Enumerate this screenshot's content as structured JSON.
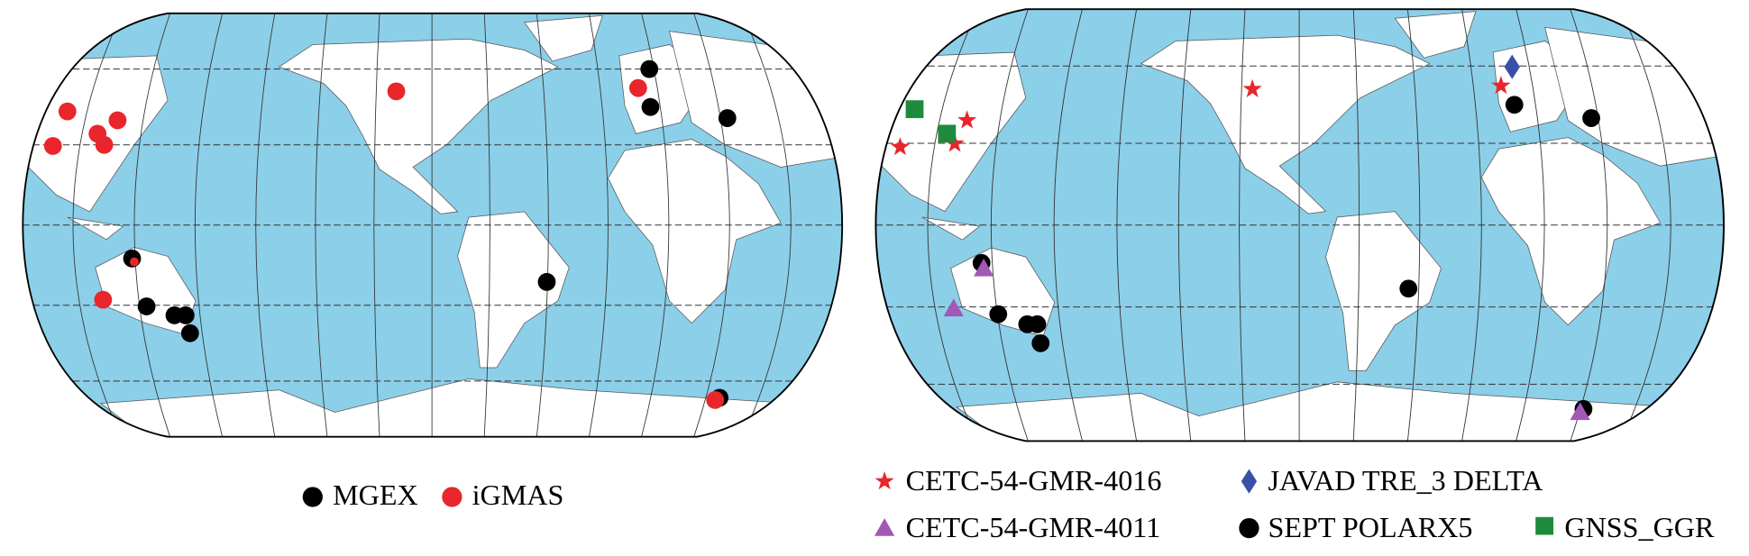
{
  "left_map": {
    "legend": [
      {
        "label": "MGEX"
      },
      {
        "label": "iGMAS"
      }
    ]
  },
  "right_map": {
    "legend": [
      {
        "label": "CETC-54-GMR-4016"
      },
      {
        "label": "JAVAD TRE_3 DELTA"
      },
      {
        "label": "CETC-54-GMR-4011"
      },
      {
        "label": "SEPT POLARX5"
      },
      {
        "label": "GNSS_GGR"
      }
    ]
  }
}
